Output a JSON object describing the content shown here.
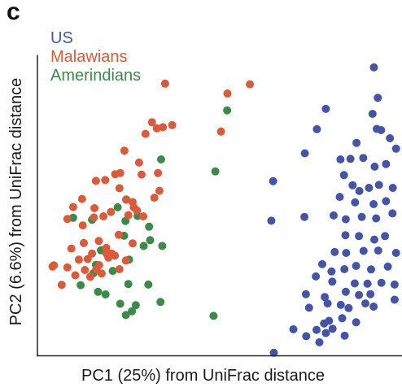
{
  "panel_label": "c",
  "chart_data": {
    "type": "scatter",
    "title": "",
    "xlabel": "PC1 (25%) from UniFrac distance",
    "ylabel": "PC2 (6.6%) from UniFrac distance",
    "xlim": [
      0,
      1
    ],
    "ylim": [
      0,
      1
    ],
    "ticks": "none",
    "grid": false,
    "legend_position": "top-left",
    "series": [
      {
        "name": "US",
        "color": "#4455A8",
        "points": [
          [
            0.935,
            0.978
          ],
          [
            0.946,
            0.873
          ],
          [
            0.8,
            0.835
          ],
          [
            0.931,
            0.818
          ],
          [
            0.943,
            0.766
          ],
          [
            0.955,
            0.762
          ],
          [
            0.775,
            0.765
          ],
          [
            0.98,
            0.734
          ],
          [
            0.886,
            0.718
          ],
          [
            0.997,
            0.698
          ],
          [
            0.741,
            0.682
          ],
          [
            0.841,
            0.661
          ],
          [
            0.869,
            0.663
          ],
          [
            0.905,
            0.666
          ],
          [
            0.937,
            0.636
          ],
          [
            0.969,
            0.645
          ],
          [
            0.652,
            0.586
          ],
          [
            0.851,
            0.607
          ],
          [
            0.875,
            0.572
          ],
          [
            0.894,
            0.552
          ],
          [
            0.921,
            0.563
          ],
          [
            0.949,
            0.573
          ],
          [
            0.988,
            0.563
          ],
          [
            0.839,
            0.532
          ],
          [
            0.882,
            0.513
          ],
          [
            0.934,
            0.507
          ],
          [
            0.969,
            0.517
          ],
          [
            0.74,
            0.463
          ],
          [
            0.822,
            0.468
          ],
          [
            0.856,
            0.455
          ],
          [
            0.901,
            0.463
          ],
          [
            0.941,
            0.458
          ],
          [
            0.987,
            0.475
          ],
          [
            0.647,
            0.45
          ],
          [
            0.855,
            0.4
          ],
          [
            0.893,
            0.397
          ],
          [
            0.936,
            0.385
          ],
          [
            0.966,
            0.397
          ],
          [
            0.825,
            0.342
          ],
          [
            0.857,
            0.339
          ],
          [
            0.906,
            0.346
          ],
          [
            0.947,
            0.347
          ],
          [
            0.997,
            0.339
          ],
          [
            0.79,
            0.3
          ],
          [
            0.816,
            0.275
          ],
          [
            0.852,
            0.283
          ],
          [
            0.885,
            0.294
          ],
          [
            0.927,
            0.282
          ],
          [
            0.974,
            0.292
          ],
          [
            0.772,
            0.258
          ],
          [
            0.818,
            0.24
          ],
          [
            0.881,
            0.234
          ],
          [
            0.917,
            0.233
          ],
          [
            0.956,
            0.236
          ],
          [
            0.993,
            0.23
          ],
          [
            0.744,
            0.197
          ],
          [
            0.797,
            0.187
          ],
          [
            0.856,
            0.205
          ],
          [
            0.893,
            0.194
          ],
          [
            0.925,
            0.197
          ],
          [
            0.993,
            0.178
          ],
          [
            0.753,
            0.15
          ],
          [
            0.805,
            0.165
          ],
          [
            0.842,
            0.16
          ],
          [
            0.864,
            0.149
          ],
          [
            0.911,
            0.165
          ],
          [
            0.934,
            0.154
          ],
          [
            0.795,
            0.096
          ],
          [
            0.809,
            0.105
          ],
          [
            0.846,
            0.114
          ],
          [
            0.885,
            0.1
          ],
          [
            0.709,
            0.076
          ],
          [
            0.774,
            0.074
          ],
          [
            0.8,
            0.063
          ],
          [
            0.745,
            0.052
          ],
          [
            0.782,
            0.031
          ],
          [
            0.654,
            -0.005
          ],
          [
            0.853,
            0.054
          ],
          [
            0.819,
            0.078
          ]
        ]
      },
      {
        "name": "Malawians",
        "color": "#DA5A3A",
        "points": [
          [
            0.349,
            0.922
          ],
          [
            0.587,
            0.92
          ],
          [
            0.524,
            0.888
          ],
          [
            0.312,
            0.789
          ],
          [
            0.343,
            0.772
          ],
          [
            0.369,
            0.779
          ],
          [
            0.326,
            0.768
          ],
          [
            0.294,
            0.749
          ],
          [
            0.506,
            0.757
          ],
          [
            0.235,
            0.691
          ],
          [
            0.276,
            0.65
          ],
          [
            0.209,
            0.61
          ],
          [
            0.181,
            0.59
          ],
          [
            0.223,
            0.614
          ],
          [
            0.283,
            0.609
          ],
          [
            0.329,
            0.614
          ],
          [
            0.155,
            0.587
          ],
          [
            0.221,
            0.562
          ],
          [
            0.333,
            0.553
          ],
          [
            0.116,
            0.525
          ],
          [
            0.24,
            0.522
          ],
          [
            0.258,
            0.514
          ],
          [
            0.261,
            0.496
          ],
          [
            0.319,
            0.529
          ],
          [
            0.091,
            0.497
          ],
          [
            0.151,
            0.493
          ],
          [
            0.197,
            0.48
          ],
          [
            0.27,
            0.485
          ],
          [
            0.149,
            0.461
          ],
          [
            0.176,
            0.465
          ],
          [
            0.246,
            0.469
          ],
          [
            0.288,
            0.465
          ],
          [
            0.075,
            0.456
          ],
          [
            0.118,
            0.434
          ],
          [
            0.219,
            0.401
          ],
          [
            0.121,
            0.373
          ],
          [
            0.163,
            0.38
          ],
          [
            0.184,
            0.356
          ],
          [
            0.144,
            0.337
          ],
          [
            0.086,
            0.354
          ],
          [
            0.199,
            0.337
          ],
          [
            0.258,
            0.372
          ],
          [
            0.107,
            0.316
          ],
          [
            0.132,
            0.318
          ],
          [
            0.156,
            0.282
          ],
          [
            0.171,
            0.268
          ],
          [
            0.221,
            0.283
          ],
          [
            0.037,
            0.296
          ],
          [
            0.075,
            0.289
          ],
          [
            0.097,
            0.262
          ],
          [
            0.139,
            0.257
          ],
          [
            0.164,
            0.297
          ],
          [
            0.185,
            0.336
          ],
          [
            0.208,
            0.33
          ],
          [
            0.124,
            0.28
          ],
          [
            0.059,
            0.229
          ],
          [
            0.239,
            0.313
          ],
          [
            0.033,
            0.292
          ],
          [
            0.19,
            0.323
          ]
        ]
      },
      {
        "name": "Amerindians",
        "color": "#3C8A47",
        "points": [
          [
            0.523,
            0.83
          ],
          [
            0.338,
            0.661
          ],
          [
            0.49,
            0.62
          ],
          [
            0.24,
            0.523
          ],
          [
            0.216,
            0.496
          ],
          [
            0.272,
            0.466
          ],
          [
            0.144,
            0.453
          ],
          [
            0.238,
            0.449
          ],
          [
            0.304,
            0.429
          ],
          [
            0.091,
            0.46
          ],
          [
            0.307,
            0.383
          ],
          [
            0.234,
            0.398
          ],
          [
            0.289,
            0.363
          ],
          [
            0.341,
            0.363
          ],
          [
            0.169,
            0.348
          ],
          [
            0.248,
            0.316
          ],
          [
            0.148,
            0.269
          ],
          [
            0.202,
            0.277
          ],
          [
            0.246,
            0.232
          ],
          [
            0.112,
            0.228
          ],
          [
            0.161,
            0.205
          ],
          [
            0.182,
            0.196
          ],
          [
            0.223,
            0.164
          ],
          [
            0.256,
            0.138
          ],
          [
            0.239,
            0.125
          ],
          [
            0.267,
            0.159
          ],
          [
            0.302,
            0.23
          ],
          [
            0.336,
            0.17
          ],
          [
            0.485,
            0.122
          ],
          [
            0.155,
            0.298
          ]
        ]
      }
    ]
  }
}
